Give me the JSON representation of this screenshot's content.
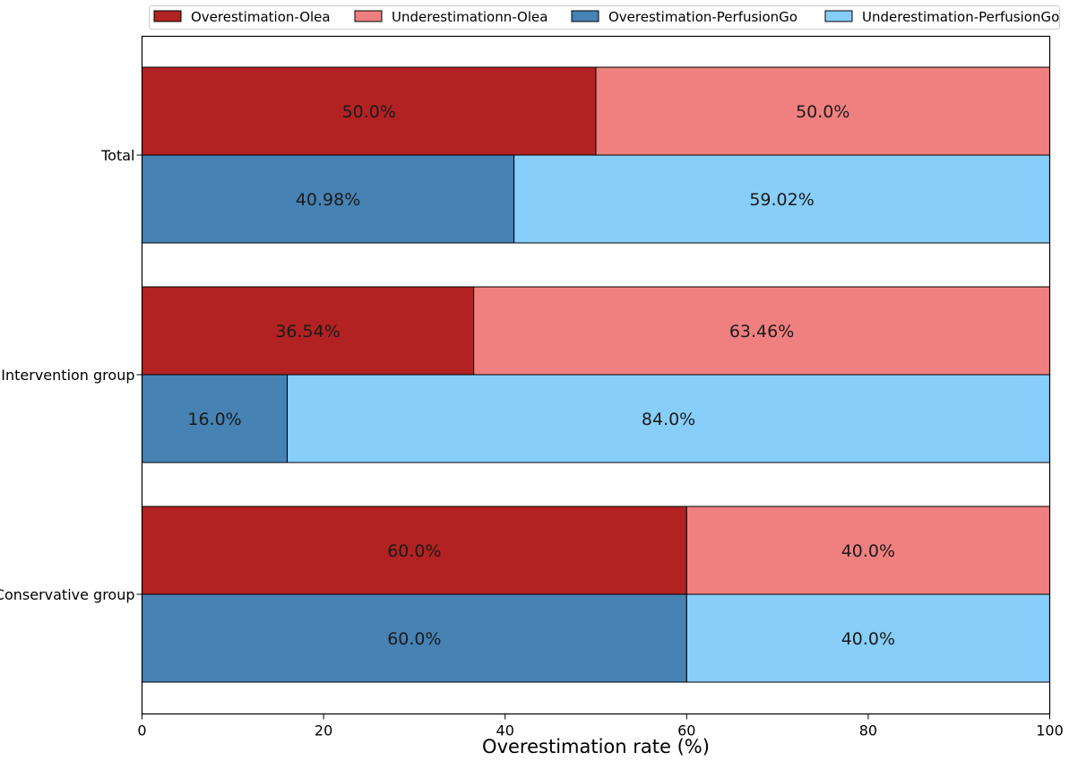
{
  "chart_data": {
    "type": "bar",
    "orientation": "horizontal",
    "stacked": true,
    "categories": [
      "Total",
      "Intervention group",
      "Conservative group"
    ],
    "xlabel": "Overestimation rate (%)",
    "ylabel": "",
    "xlim": [
      0,
      100
    ],
    "xticks": [
      0,
      20,
      40,
      60,
      80,
      100
    ],
    "legend_position": "top",
    "groups": [
      {
        "name": "Olea",
        "segments": [
          {
            "name": "Overestimation-Olea",
            "color": "#b22222",
            "values": [
              50.0,
              36.54,
              60.0
            ],
            "labels": [
              "50.0%",
              "36.54%",
              "60.0%"
            ]
          },
          {
            "name": "Underestimationn-Olea",
            "color": "#f08080",
            "values": [
              50.0,
              63.46,
              40.0
            ],
            "labels": [
              "50.0%",
              "63.46%",
              "40.0%"
            ]
          }
        ]
      },
      {
        "name": "PerfusionGo",
        "segments": [
          {
            "name": "Overestimation-PerfusionGo",
            "color": "#4682b4",
            "values": [
              40.98,
              16.0,
              60.0
            ],
            "labels": [
              "40.98%",
              "16.0%",
              "60.0%"
            ]
          },
          {
            "name": "Underestimation-PerfusionGo",
            "color": "#87cefa",
            "values": [
              59.02,
              84.0,
              40.0
            ],
            "labels": [
              "59.02%",
              "84.0%",
              "40.0%"
            ]
          }
        ]
      }
    ],
    "legend": [
      "Overestimation-Olea",
      "Underestimationn-Olea",
      "Overestimation-PerfusionGo",
      "Underestimation-PerfusionGo"
    ]
  }
}
